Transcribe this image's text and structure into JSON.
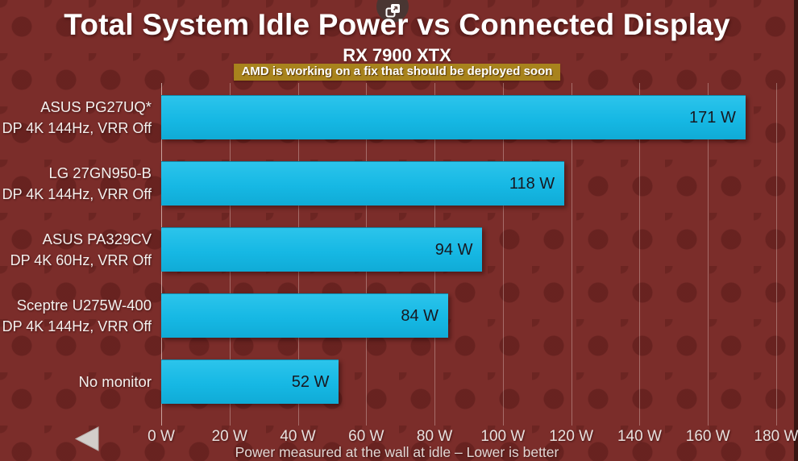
{
  "header": {
    "title": "Total System Idle Power vs Connected Display",
    "subtitle": "RX 7900 XTX",
    "notice": "AMD is working on a fix that should be deployed soon"
  },
  "icons": {
    "popout": "open-in-new-window",
    "prev": "previous-chart-triangle-left"
  },
  "colors": {
    "background": "#7b2d2a",
    "bar": "#17bde8",
    "notice_badge": "#a8831d",
    "value_text": "#181820",
    "label_text": "#f4f0ee"
  },
  "chart_data": {
    "type": "bar",
    "orientation": "horizontal",
    "title": "Total System Idle Power vs Connected Display",
    "subtitle": "RX 7900 XTX",
    "annotation": "AMD is working on a fix that should be deployed soon",
    "categories": [
      {
        "name": "ASUS PG27UQ*",
        "spec": "DP 4K 144Hz, VRR Off"
      },
      {
        "name": "LG 27GN950-B",
        "spec": "DP 4K 144Hz, VRR Off"
      },
      {
        "name": "ASUS PA329CV",
        "spec": "DP 4K 60Hz, VRR Off"
      },
      {
        "name": "Sceptre U275W-400",
        "spec": "DP 4K 144Hz,  VRR Off"
      },
      {
        "name": "No monitor",
        "spec": ""
      }
    ],
    "values": [
      171,
      118,
      94,
      84,
      52
    ],
    "value_labels": [
      "171 W",
      "118 W",
      "94 W",
      "84 W",
      "52 W"
    ],
    "unit": "W",
    "xlim": [
      0,
      180
    ],
    "x_tick_values": [
      0,
      20,
      40,
      60,
      80,
      100,
      120,
      140,
      160,
      180
    ],
    "x_ticks": [
      "0 W",
      "20 W",
      "40 W",
      "60 W",
      "80 W",
      "100 W",
      "120 W",
      "140 W",
      "160 W",
      "180 W"
    ],
    "xlabel": "Power measured at the wall at idle – Lower is better",
    "grid": true,
    "legend": false
  }
}
